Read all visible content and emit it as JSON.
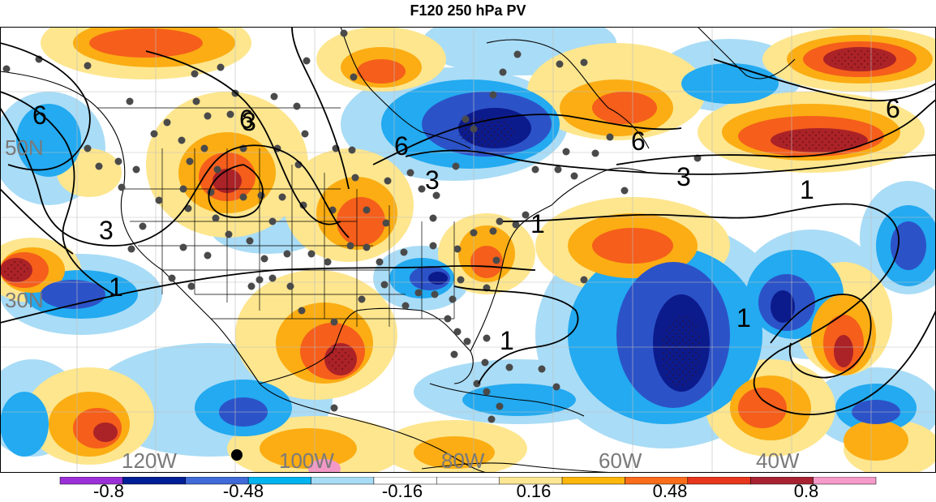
{
  "title": "F120 250 hPa PV",
  "map": {
    "lat_labels": [
      "50N",
      "30N"
    ],
    "lon_labels": [
      "120W",
      "100W",
      "80W",
      "60W",
      "40W"
    ],
    "contour_labels": [
      "6",
      "6",
      "6",
      "6",
      "6",
      "3",
      "3",
      "3",
      "3",
      "1",
      "1",
      "1",
      "1",
      "1"
    ]
  },
  "colorbar": {
    "labels": [
      "-0.8",
      "-0.48",
      "-0.16",
      "0.16",
      "0.48",
      "0.8"
    ],
    "colors": [
      "#9b30d9",
      "#001e96",
      "#3f6ad8",
      "#00b4f0",
      "#a8dcf5",
      "#ffffff",
      "#ffffff",
      "#fde793",
      "#fdb70b",
      "#fb6d1a",
      "#e8361c",
      "#a82232",
      "#f59ac9"
    ]
  },
  "colors": {
    "dark_blue": "#0c1b8c",
    "blue": "#2c52c8",
    "cyan": "#23aaf0",
    "light_blue": "#a9dcf6",
    "light_yellow": "#fde68e",
    "orange": "#fbad13",
    "red_orange": "#f55e1b",
    "dark_red": "#ab2227",
    "pink": "#f398c6"
  }
}
